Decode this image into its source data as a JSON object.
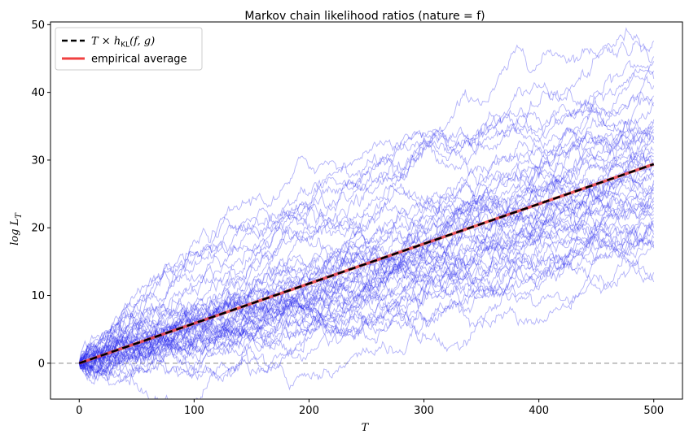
{
  "chart_data": {
    "type": "line",
    "title": "Markov chain likelihood ratios (nature = f)",
    "xlabel_main": "T",
    "ylabel_main": "log L",
    "ylabel_sub": "T",
    "xlim": [
      -25,
      525
    ],
    "ylim": [
      -5.3,
      50.4
    ],
    "xticks": [
      0,
      100,
      200,
      300,
      400,
      500
    ],
    "yticks": [
      0,
      10,
      20,
      30,
      40,
      50
    ],
    "grid": false,
    "legend_position": "top-left",
    "legend": [
      {
        "name_main": "T × h",
        "name_sub": "KL",
        "name_tail": "(f, g)",
        "color": "#000000",
        "style": "dashed"
      },
      {
        "name_main": "empirical average",
        "name_sub": "",
        "name_tail": "",
        "color": "#f04040",
        "style": "solid"
      }
    ],
    "reference_line": {
      "y": 0,
      "color": "#b0b0b0",
      "style": "dashed"
    },
    "theory_line": {
      "x": [
        0,
        500
      ],
      "y": [
        0,
        29.4
      ]
    },
    "empirical_average": {
      "x": [
        0,
        500
      ],
      "y": [
        0,
        29.4
      ]
    },
    "simulated_paths": {
      "count": 50,
      "color": "#2222ee",
      "T": 500,
      "drift_per_step": 0.0588,
      "final_values_sample": [
        47.6,
        45.3,
        44.6,
        43.2,
        42.0,
        41.0,
        38.5,
        38.0,
        35.5,
        35.0,
        34.5,
        34.0,
        33.5,
        33.0,
        32.5,
        31.5,
        30.5,
        30.0,
        29.5,
        29.0,
        28.5,
        28.0,
        27.5,
        27.0,
        26.5,
        26.0,
        25.5,
        25.0,
        24.5,
        24.0,
        23.5,
        23.0,
        22.5,
        22.0,
        21.5,
        21.0,
        20.5,
        20.0,
        19.5,
        19.0,
        18.5,
        18.0,
        17.5,
        17.0,
        13.4,
        12.0,
        31.0,
        36.0,
        39.5,
        29.6
      ]
    }
  }
}
